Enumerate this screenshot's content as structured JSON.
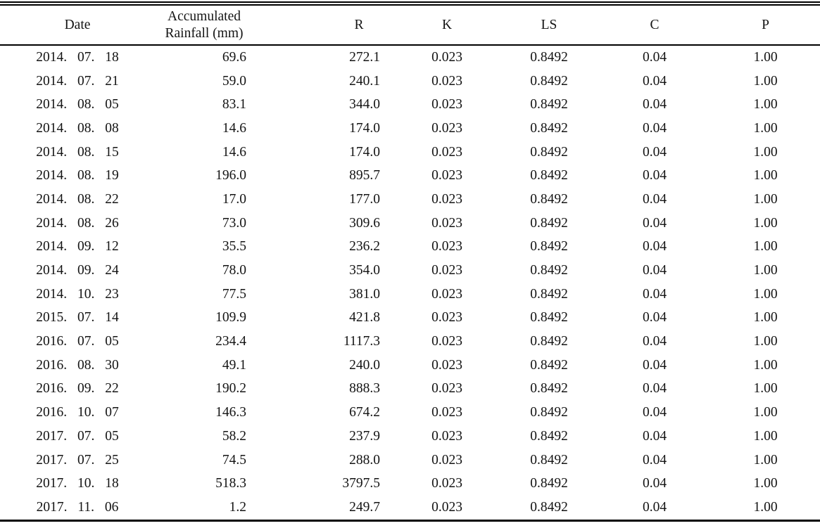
{
  "table": {
    "name": "rainfall-rusle-factors-table",
    "columns": [
      {
        "key": "date",
        "label": "Date"
      },
      {
        "key": "rainfall",
        "label": "Accumulated Rainfall (mm)"
      },
      {
        "key": "r",
        "label": "R"
      },
      {
        "key": "k",
        "label": "K"
      },
      {
        "key": "ls",
        "label": "LS"
      },
      {
        "key": "c",
        "label": "C"
      },
      {
        "key": "p",
        "label": "P"
      }
    ],
    "rows": [
      [
        "2014. 07. 18",
        "69.6",
        "272.1",
        "0.023",
        "0.8492",
        "0.04",
        "1.00"
      ],
      [
        "2014. 07. 21",
        "59.0",
        "240.1",
        "0.023",
        "0.8492",
        "0.04",
        "1.00"
      ],
      [
        "2014. 08. 05",
        "83.1",
        "344.0",
        "0.023",
        "0.8492",
        "0.04",
        "1.00"
      ],
      [
        "2014. 08. 08",
        "14.6",
        "174.0",
        "0.023",
        "0.8492",
        "0.04",
        "1.00"
      ],
      [
        "2014. 08. 15",
        "14.6",
        "174.0",
        "0.023",
        "0.8492",
        "0.04",
        "1.00"
      ],
      [
        "2014. 08. 19",
        "196.0",
        "895.7",
        "0.023",
        "0.8492",
        "0.04",
        "1.00"
      ],
      [
        "2014. 08. 22",
        "17.0",
        "177.0",
        "0.023",
        "0.8492",
        "0.04",
        "1.00"
      ],
      [
        "2014. 08. 26",
        "73.0",
        "309.6",
        "0.023",
        "0.8492",
        "0.04",
        "1.00"
      ],
      [
        "2014. 09. 12",
        "35.5",
        "236.2",
        "0.023",
        "0.8492",
        "0.04",
        "1.00"
      ],
      [
        "2014. 09. 24",
        "78.0",
        "354.0",
        "0.023",
        "0.8492",
        "0.04",
        "1.00"
      ],
      [
        "2014. 10. 23",
        "77.5",
        "381.0",
        "0.023",
        "0.8492",
        "0.04",
        "1.00"
      ],
      [
        "2015. 07. 14",
        "109.9",
        "421.8",
        "0.023",
        "0.8492",
        "0.04",
        "1.00"
      ],
      [
        "2016. 07. 05",
        "234.4",
        "1117.3",
        "0.023",
        "0.8492",
        "0.04",
        "1.00"
      ],
      [
        "2016. 08. 30",
        "49.1",
        "240.0",
        "0.023",
        "0.8492",
        "0.04",
        "1.00"
      ],
      [
        "2016. 09. 22",
        "190.2",
        "888.3",
        "0.023",
        "0.8492",
        "0.04",
        "1.00"
      ],
      [
        "2016. 10. 07",
        "146.3",
        "674.2",
        "0.023",
        "0.8492",
        "0.04",
        "1.00"
      ],
      [
        "2017. 07. 05",
        "58.2",
        "237.9",
        "0.023",
        "0.8492",
        "0.04",
        "1.00"
      ],
      [
        "2017. 07. 25",
        "74.5",
        "288.0",
        "0.023",
        "0.8492",
        "0.04",
        "1.00"
      ],
      [
        "2017. 10. 18",
        "518.3",
        "3797.5",
        "0.023",
        "0.8492",
        "0.04",
        "1.00"
      ],
      [
        "2017. 11. 06",
        "1.2",
        "249.7",
        "0.023",
        "0.8492",
        "0.04",
        "1.00"
      ]
    ]
  },
  "chart_data": {
    "type": "table",
    "title": "",
    "categories": [
      "Date",
      "Accumulated Rainfall (mm)",
      "R",
      "K",
      "LS",
      "C",
      "P"
    ],
    "series": [
      {
        "name": "Accumulated Rainfall (mm)",
        "values": [
          69.6,
          59.0,
          83.1,
          14.6,
          14.6,
          196.0,
          17.0,
          73.0,
          35.5,
          78.0,
          77.5,
          109.9,
          234.4,
          49.1,
          190.2,
          146.3,
          58.2,
          74.5,
          518.3,
          1.2
        ]
      },
      {
        "name": "R",
        "values": [
          272.1,
          240.1,
          344.0,
          174.0,
          174.0,
          895.7,
          177.0,
          309.6,
          236.2,
          354.0,
          381.0,
          421.8,
          1117.3,
          240.0,
          888.3,
          674.2,
          237.9,
          288.0,
          3797.5,
          249.7
        ]
      },
      {
        "name": "K",
        "values": [
          0.023,
          0.023,
          0.023,
          0.023,
          0.023,
          0.023,
          0.023,
          0.023,
          0.023,
          0.023,
          0.023,
          0.023,
          0.023,
          0.023,
          0.023,
          0.023,
          0.023,
          0.023,
          0.023,
          0.023
        ]
      },
      {
        "name": "LS",
        "values": [
          0.8492,
          0.8492,
          0.8492,
          0.8492,
          0.8492,
          0.8492,
          0.8492,
          0.8492,
          0.8492,
          0.8492,
          0.8492,
          0.8492,
          0.8492,
          0.8492,
          0.8492,
          0.8492,
          0.8492,
          0.8492,
          0.8492,
          0.8492
        ]
      },
      {
        "name": "C",
        "values": [
          0.04,
          0.04,
          0.04,
          0.04,
          0.04,
          0.04,
          0.04,
          0.04,
          0.04,
          0.04,
          0.04,
          0.04,
          0.04,
          0.04,
          0.04,
          0.04,
          0.04,
          0.04,
          0.04,
          0.04
        ]
      },
      {
        "name": "P",
        "values": [
          1.0,
          1.0,
          1.0,
          1.0,
          1.0,
          1.0,
          1.0,
          1.0,
          1.0,
          1.0,
          1.0,
          1.0,
          1.0,
          1.0,
          1.0,
          1.0,
          1.0,
          1.0,
          1.0,
          1.0
        ]
      }
    ],
    "x": [
      "2014. 07. 18",
      "2014. 07. 21",
      "2014. 08. 05",
      "2014. 08. 08",
      "2014. 08. 15",
      "2014. 08. 19",
      "2014. 08. 22",
      "2014. 08. 26",
      "2014. 09. 12",
      "2014. 09. 24",
      "2014. 10. 23",
      "2015. 07. 14",
      "2016. 07. 05",
      "2016. 08. 30",
      "2016. 09. 22",
      "2016. 10. 07",
      "2017. 07. 05",
      "2017. 07. 25",
      "2017. 10. 18",
      "2017. 11. 06"
    ]
  },
  "colors": {
    "text": "#141414",
    "rule": "#000000",
    "background": "#ffffff"
  }
}
